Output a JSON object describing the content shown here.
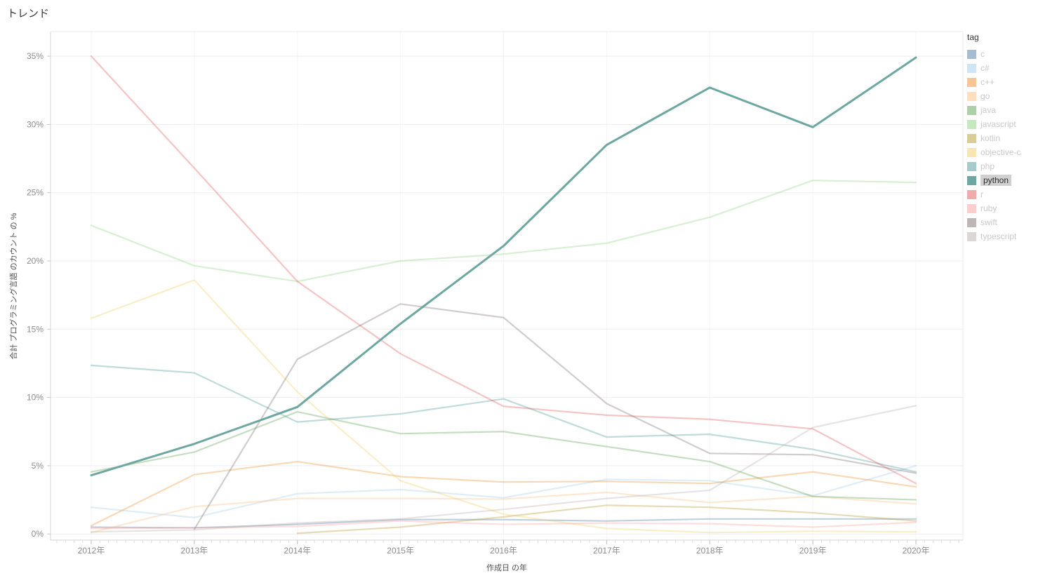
{
  "title": "トレンド",
  "legend": {
    "title": "tag"
  },
  "axes": {
    "y_title": "合計 プログラミング言語 のカウント の %",
    "x_title": "作成日 の年",
    "y_ticks": [
      "0%",
      "5%",
      "10%",
      "15%",
      "20%",
      "25%",
      "30%",
      "35%"
    ],
    "x_ticks": [
      "2012年",
      "2013年",
      "2014年",
      "2015年",
      "2016年",
      "2017年",
      "2018年",
      "2019年",
      "2020年"
    ]
  },
  "chart_data": {
    "type": "line",
    "title": "トレンド",
    "xlabel": "作成日 の年",
    "ylabel": "合計 プログラミング言語 のカウント の %",
    "x": [
      2012,
      2013,
      2014,
      2015,
      2016,
      2017,
      2018,
      2019,
      2020
    ],
    "ylim": [
      0,
      36.8
    ],
    "grid": "horizontal",
    "legend_position": "right",
    "highlighted_series": "python",
    "series": [
      {
        "tag": "c",
        "color": "#4e79a7",
        "selected": false,
        "values": [
          0.5,
          0.45,
          0.7,
          1.05,
          1.05,
          0.95,
          1.1,
          1.1,
          1.1
        ]
      },
      {
        "tag": "c#",
        "color": "#a0cbe8",
        "selected": false,
        "values": [
          1.95,
          1.2,
          2.95,
          3.25,
          2.65,
          4.0,
          3.9,
          2.8,
          5.0
        ]
      },
      {
        "tag": "c++",
        "color": "#f28e2b",
        "selected": false,
        "values": [
          0.6,
          4.35,
          5.3,
          4.2,
          3.8,
          3.85,
          3.7,
          4.55,
          3.45
        ]
      },
      {
        "tag": "go",
        "color": "#ffbe7d",
        "selected": false,
        "values": [
          0.1,
          2.0,
          2.6,
          2.6,
          2.55,
          3.05,
          2.3,
          2.75,
          2.2
        ]
      },
      {
        "tag": "java",
        "color": "#59a14f",
        "selected": false,
        "values": [
          4.55,
          6.0,
          8.95,
          7.35,
          7.5,
          6.4,
          5.3,
          2.75,
          2.5
        ]
      },
      {
        "tag": "javascript",
        "color": "#8cd17d",
        "selected": false,
        "values": [
          22.6,
          19.65,
          18.5,
          20.0,
          20.5,
          21.3,
          23.2,
          25.9,
          25.75
        ]
      },
      {
        "tag": "kotlin",
        "color": "#b6992d",
        "selected": false,
        "values": [
          null,
          null,
          0.05,
          0.5,
          1.25,
          2.1,
          1.95,
          1.55,
          0.95
        ]
      },
      {
        "tag": "objective-c",
        "color": "#f1ce63",
        "selected": false,
        "values": [
          15.8,
          18.6,
          10.4,
          3.9,
          1.45,
          0.4,
          0.1,
          0.2,
          0.15
        ]
      },
      {
        "tag": "php",
        "color": "#499894",
        "selected": false,
        "values": [
          12.35,
          11.8,
          8.2,
          8.8,
          9.9,
          7.1,
          7.3,
          6.2,
          4.55
        ]
      },
      {
        "tag": "python",
        "color": "#6da7a1",
        "selected": true,
        "values": [
          4.3,
          6.6,
          9.3,
          15.4,
          21.1,
          28.5,
          32.7,
          29.8,
          34.9
        ]
      },
      {
        "tag": "r",
        "color": "#e15759",
        "selected": false,
        "values": [
          35.0,
          26.8,
          18.5,
          13.2,
          9.35,
          8.7,
          8.4,
          7.7,
          3.7
        ]
      },
      {
        "tag": "ruby",
        "color": "#ff9d9a",
        "selected": false,
        "values": [
          0.4,
          0.45,
          0.55,
          0.95,
          0.7,
          0.8,
          0.75,
          0.5,
          0.85
        ]
      },
      {
        "tag": "swift",
        "color": "#79706e",
        "selected": false,
        "values": [
          null,
          0.35,
          12.8,
          16.85,
          15.85,
          9.55,
          5.9,
          5.8,
          4.45
        ]
      },
      {
        "tag": "typescript",
        "color": "#bab0ac",
        "selected": false,
        "values": [
          0.15,
          0.3,
          0.8,
          1.1,
          1.8,
          2.6,
          3.2,
          7.8,
          9.4
        ]
      }
    ]
  }
}
